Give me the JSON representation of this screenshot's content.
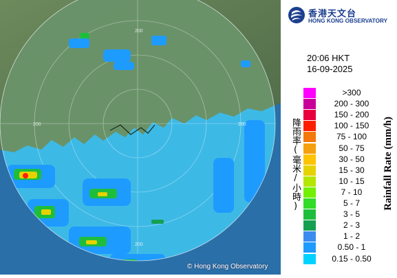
{
  "logo": {
    "zh": "香港天文台",
    "en": "HONG KONG OBSERVATORY",
    "icon": "hko-logo-icon",
    "color": "#1c3f8f"
  },
  "timestamp": {
    "time": "20:06 HKT",
    "date": "16-09-2025"
  },
  "legend": {
    "title_zh": "降雨率(毫米/小時)",
    "title_en": "Rainfall Rate (mm/h)",
    "items": [
      {
        "label": ">300",
        "color": "#ff00ff"
      },
      {
        "label": "200 - 300",
        "color": "#c80099"
      },
      {
        "label": "150 - 200",
        "color": "#e8003c"
      },
      {
        "label": "100 - 150",
        "color": "#ff1e00"
      },
      {
        "label": "75 - 100",
        "color": "#f4780a"
      },
      {
        "label": "50 - 75",
        "color": "#f5a10f"
      },
      {
        "label": "30 - 50",
        "color": "#ffc400"
      },
      {
        "label": "15 - 30",
        "color": "#e6d200"
      },
      {
        "label": "10 - 15",
        "color": "#b4e600"
      },
      {
        "label": "7 - 10",
        "color": "#73f000"
      },
      {
        "label": "5 - 7",
        "color": "#32dc28"
      },
      {
        "label": "3 - 5",
        "color": "#1ebe3c"
      },
      {
        "label": "2 - 3",
        "color": "#14a050"
      },
      {
        "label": "1 - 2",
        "color": "#3c8cf0"
      },
      {
        "label": "0.50 - 1",
        "color": "#1e9bff"
      },
      {
        "label": "0.15 - 0.50",
        "color": "#00d2ff"
      }
    ]
  },
  "map": {
    "copyright": "© Hong Kong Observatory",
    "range_ring_labels": [
      "200",
      "200",
      "200",
      "200"
    ],
    "land_color": "#5e7a52",
    "sea_color": "#2a6fa8",
    "radar_disc_color": "#40c4ee"
  }
}
